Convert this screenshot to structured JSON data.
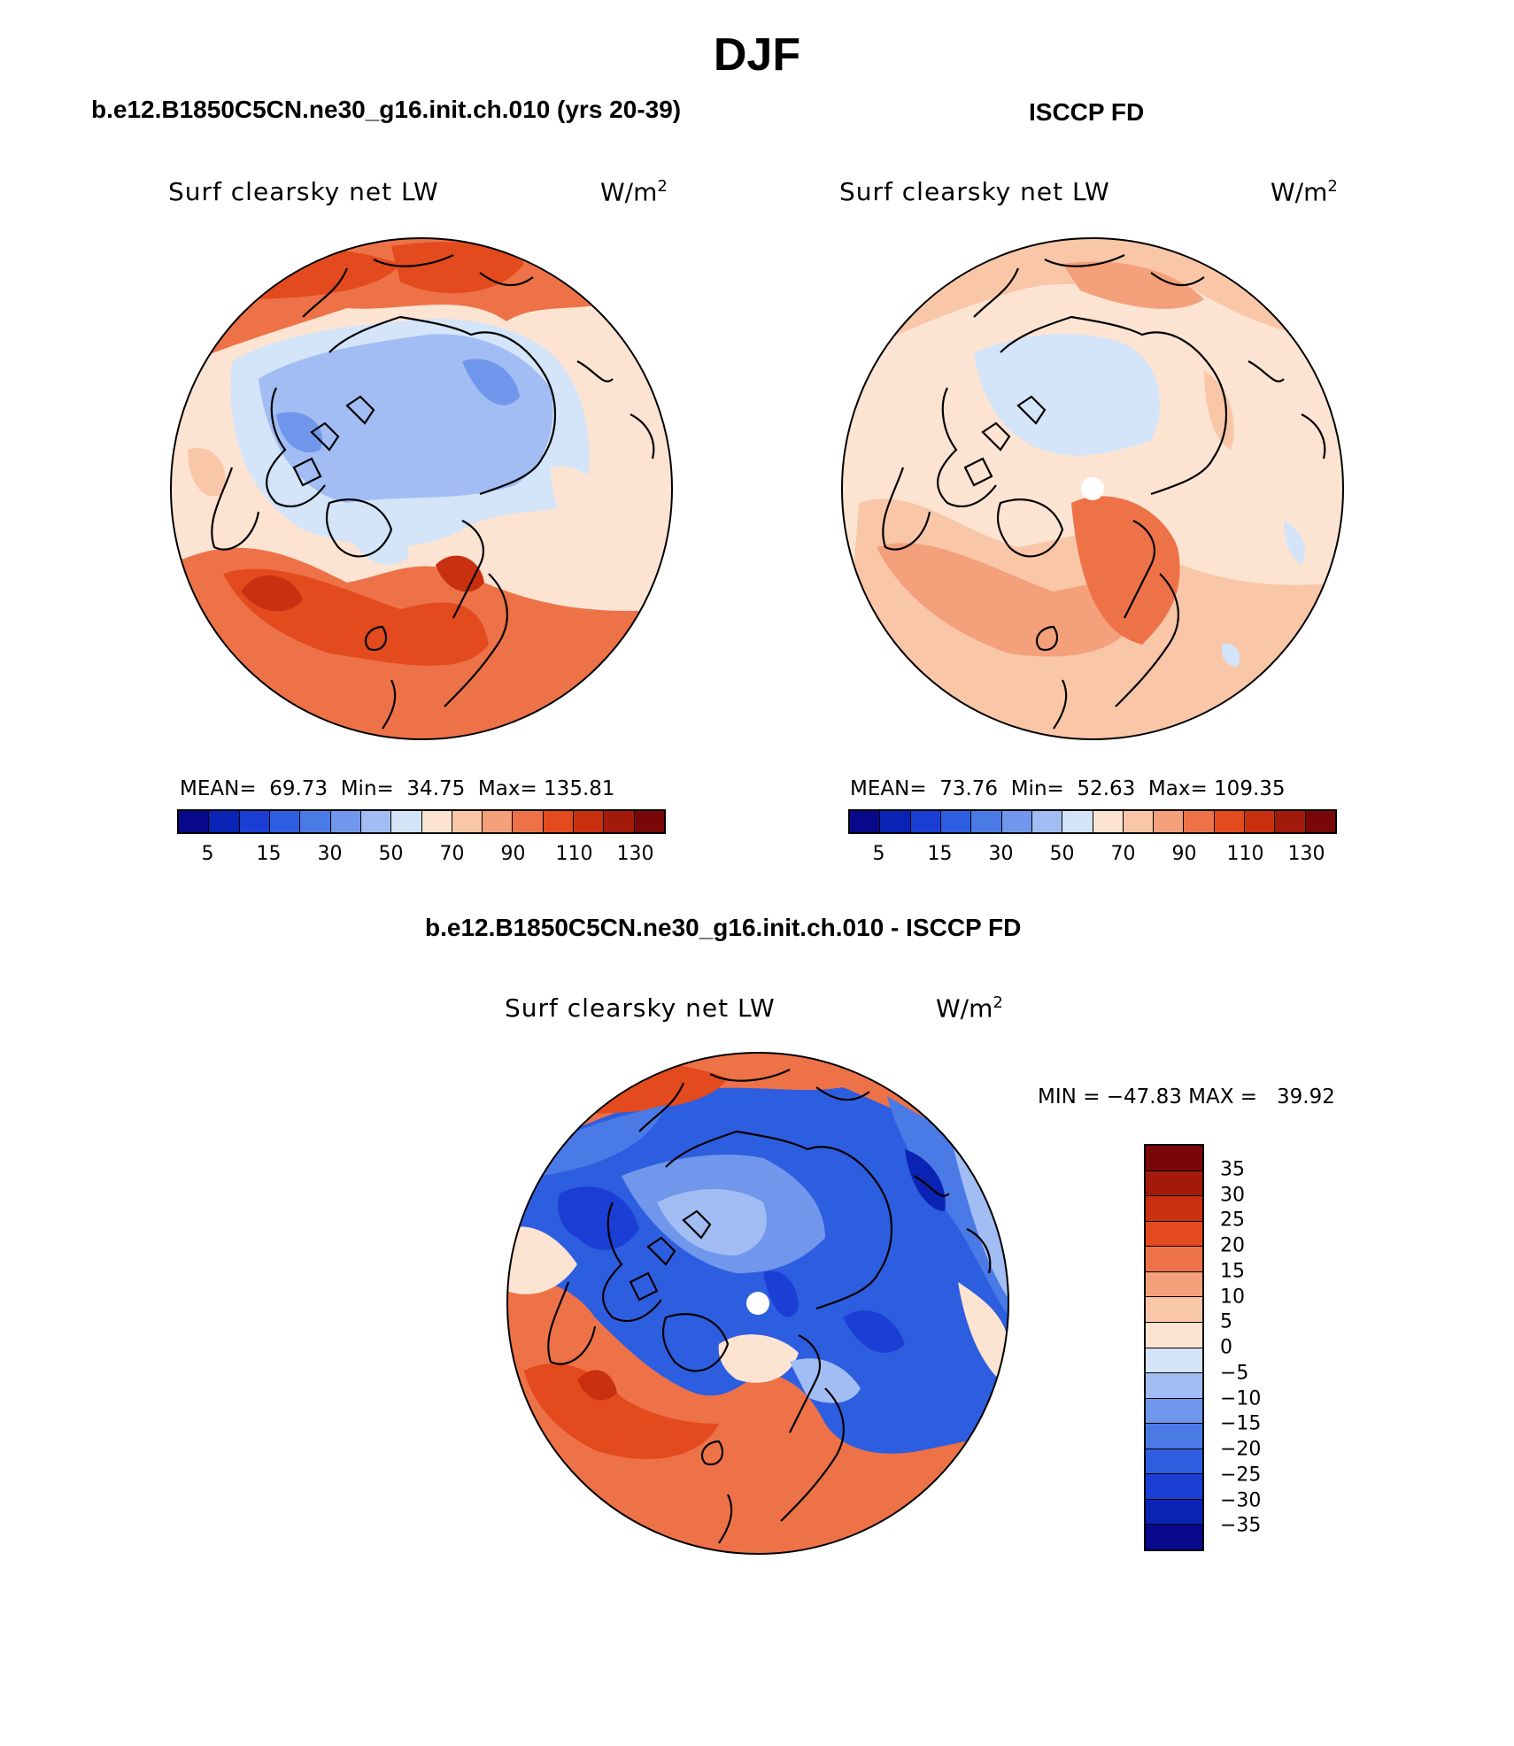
{
  "title": "DJF",
  "panels": [
    {
      "case_title": "b.e12.B1850C5CN.ne30_g16.init.ch.010 (yrs 20-39)",
      "variable": "Surf clearsky net LW",
      "units": "W/m",
      "units_exp": "2",
      "mean_label": "MEAN=",
      "mean": "69.73",
      "min_label": "Min=",
      "min": "34.75",
      "max_label": "Max=",
      "max": "135.81",
      "colorbar_ticks": [
        "5",
        "15",
        "30",
        "50",
        "70",
        "90",
        "110",
        "130"
      ]
    },
    {
      "case_title": "ISCCP FD",
      "variable": "Surf clearsky net LW",
      "units": "W/m",
      "units_exp": "2",
      "mean_label": "MEAN=",
      "mean": "73.76",
      "min_label": "Min=",
      "min": "52.63",
      "max_label": "Max=",
      "max": "109.35",
      "colorbar_ticks": [
        "5",
        "15",
        "30",
        "50",
        "70",
        "90",
        "110",
        "130"
      ]
    }
  ],
  "diff_panel": {
    "case_title": "b.e12.B1850C5CN.ne30_g16.init.ch.010 - ISCCP FD",
    "variable": "Surf clearsky net LW",
    "units": "W/m",
    "units_exp": "2",
    "minmax_label": "MIN = −47.83 MAX =   39.92",
    "colorbar_ticks": [
      "35",
      "30",
      "25",
      "20",
      "15",
      "10",
      "5",
      "0",
      "−5",
      "−10",
      "−15",
      "−20",
      "−25",
      "−30",
      "−35"
    ]
  },
  "palette": {
    "abs": [
      "#08088a",
      "#0a23b4",
      "#1b3fd4",
      "#2e5ee0",
      "#4a7ae6",
      "#7097ec",
      "#a2bdf3",
      "#d4e4f9",
      "#fde4d2",
      "#f9c6a8",
      "#f4a07a",
      "#ee7248",
      "#e34a1e",
      "#c9300f",
      "#a31a0a",
      "#7a0707"
    ],
    "diff": [
      "#7a0707",
      "#a31a0a",
      "#c9300f",
      "#e34a1e",
      "#ee7248",
      "#f4a07a",
      "#f9c6a8",
      "#fde4d2",
      "#d4e4f9",
      "#a2bdf3",
      "#7097ec",
      "#4a7ae6",
      "#2e5ee0",
      "#1b3fd4",
      "#0a23b4",
      "#08088a"
    ]
  }
}
